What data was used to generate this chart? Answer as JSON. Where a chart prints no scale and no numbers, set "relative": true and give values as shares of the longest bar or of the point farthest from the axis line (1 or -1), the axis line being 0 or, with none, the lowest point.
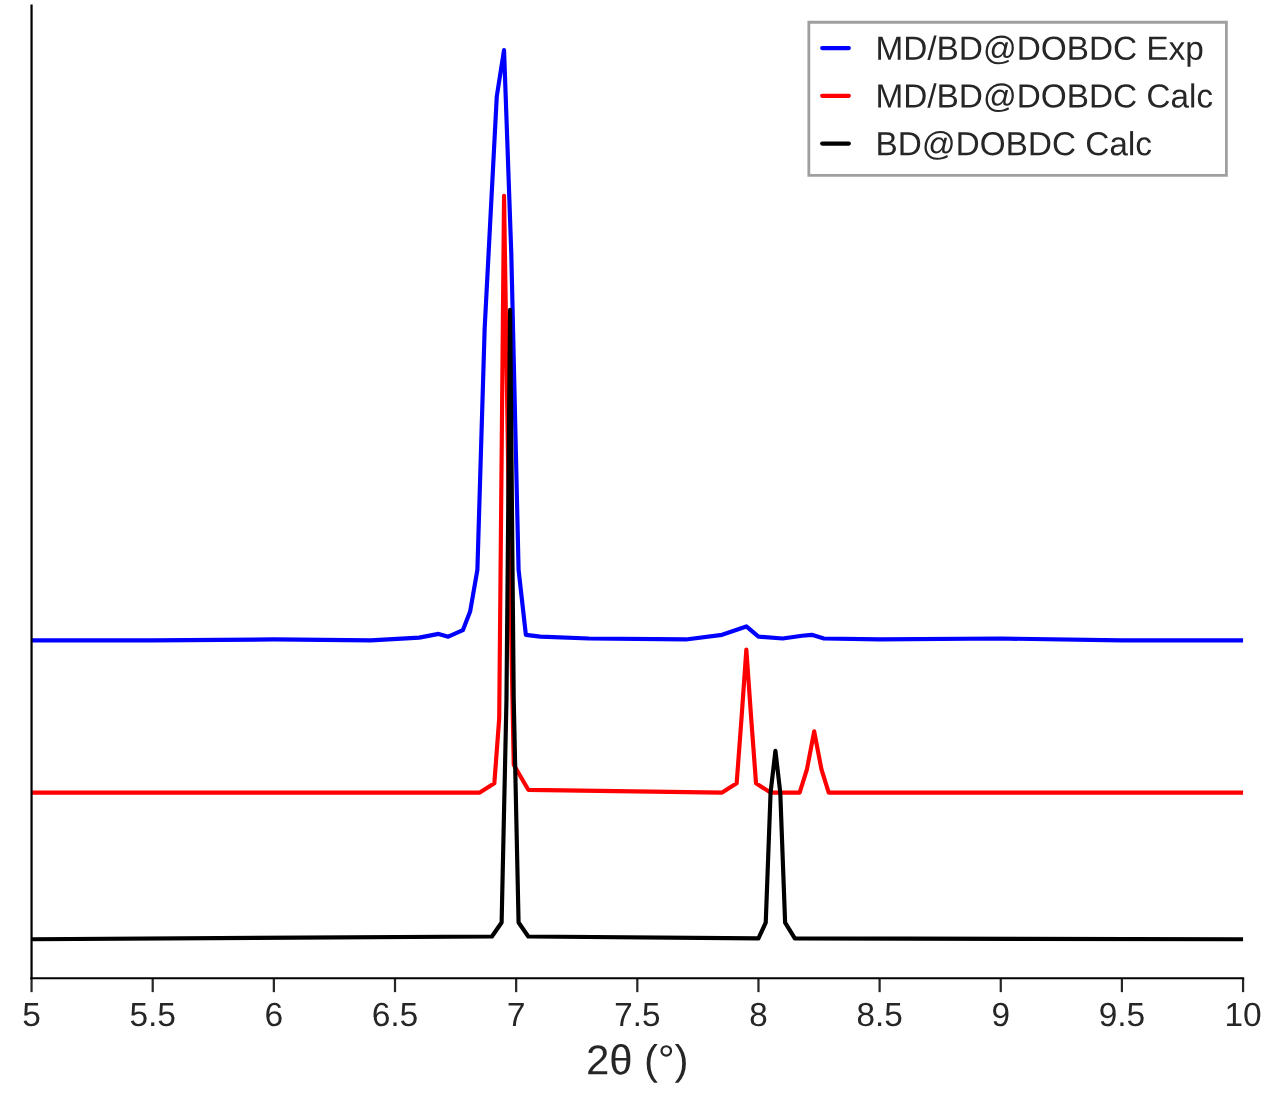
{
  "chart_data": {
    "type": "line",
    "relative": true,
    "xlabel": "2θ (°)",
    "xlim": [
      5,
      10
    ],
    "xticks": [
      5,
      5.5,
      6,
      6.5,
      7,
      7.5,
      8,
      8.5,
      9,
      9.5,
      10
    ],
    "legend": "top right",
    "grid": false,
    "marker": "none",
    "line_style": "solid",
    "series": [
      {
        "name": "MD/BD@DOBDC Exp",
        "color": "#0000ff",
        "x": [
          5.0,
          5.5,
          6.0,
          6.4,
          6.6,
          6.68,
          6.72,
          6.78,
          6.81,
          6.84,
          6.87,
          6.92,
          6.95,
          6.98,
          7.01,
          7.04,
          7.1,
          7.3,
          7.7,
          7.85,
          7.95,
          8.0,
          8.1,
          8.18,
          8.22,
          8.27,
          8.5,
          9.0,
          9.5,
          10.0
        ],
        "values": [
          0.364,
          0.364,
          0.365,
          0.364,
          0.367,
          0.371,
          0.368,
          0.375,
          0.395,
          0.44,
          0.7,
          0.95,
          1.0,
          0.78,
          0.44,
          0.37,
          0.368,
          0.366,
          0.365,
          0.37,
          0.379,
          0.368,
          0.366,
          0.369,
          0.37,
          0.366,
          0.365,
          0.366,
          0.364,
          0.364
        ]
      },
      {
        "name": "MD/BD@DOBDC Calc",
        "color": "#ff0000",
        "x": [
          5.0,
          6.85,
          6.91,
          6.93,
          6.95,
          6.97,
          6.99,
          7.05,
          7.85,
          7.91,
          7.93,
          7.95,
          7.97,
          7.99,
          8.05,
          8.17,
          8.2,
          8.23,
          8.26,
          8.29,
          10.0
        ],
        "values": [
          0.2,
          0.2,
          0.21,
          0.28,
          0.843,
          0.5,
          0.23,
          0.203,
          0.2,
          0.21,
          0.28,
          0.354,
          0.28,
          0.21,
          0.2,
          0.2,
          0.225,
          0.266,
          0.225,
          0.2,
          0.2
        ]
      },
      {
        "name": "BD@DOBDC Calc",
        "color": "#000000",
        "x": [
          5.0,
          6.9,
          6.94,
          6.96,
          6.975,
          6.99,
          7.01,
          7.05,
          8.0,
          8.03,
          8.05,
          8.07,
          8.09,
          8.11,
          8.15,
          10.0
        ],
        "values": [
          0.042,
          0.045,
          0.06,
          0.3,
          0.72,
          0.3,
          0.06,
          0.045,
          0.043,
          0.06,
          0.2,
          0.245,
          0.2,
          0.06,
          0.043,
          0.042
        ]
      }
    ]
  }
}
